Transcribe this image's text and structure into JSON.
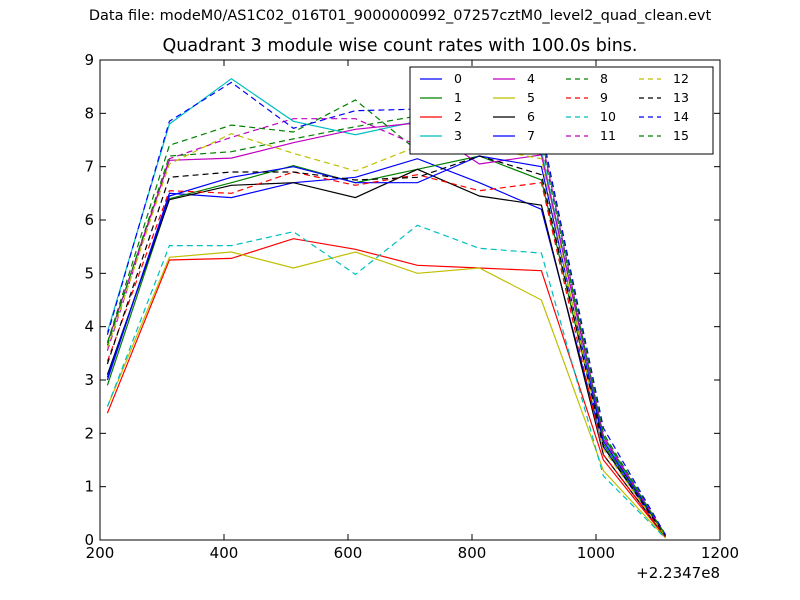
{
  "figure": {
    "suptitle": "Data file: modeM0/AS1C02_016T01_9000000992_07257cztM0_level2_quad_clean.evt",
    "title": "Quadrant 3 module wise count rates with 100.0s bins.",
    "x_offset_label": "+2.2347e8"
  },
  "chart_data": {
    "type": "line",
    "title": "Quadrant 3 module wise count rates with 100.0s bins.",
    "xlabel": "",
    "ylabel": "",
    "xlim": [
      200,
      1200
    ],
    "ylim": [
      0,
      9
    ],
    "x_offset": "+2.2347e8",
    "xticks": [
      200,
      400,
      600,
      800,
      1000,
      1200
    ],
    "yticks": [
      0,
      1,
      2,
      3,
      4,
      5,
      6,
      7,
      8,
      9
    ],
    "grid": false,
    "legend": {
      "placement": "top-right",
      "columns": 4
    },
    "x": [
      212,
      312,
      412,
      512,
      612,
      712,
      812,
      912,
      1012,
      1112
    ],
    "series": [
      {
        "name": "0",
        "color": "#0000ff",
        "dash": "solid",
        "values": [
          3.0,
          6.5,
          6.42,
          6.7,
          6.8,
          7.15,
          6.7,
          6.2,
          1.75,
          0.05
        ]
      },
      {
        "name": "1",
        "color": "#008000",
        "dash": "solid",
        "values": [
          2.9,
          6.4,
          6.7,
          7.02,
          6.7,
          6.95,
          7.2,
          6.75,
          1.8,
          0.08
        ]
      },
      {
        "name": "2",
        "color": "#ff0000",
        "dash": "solid",
        "values": [
          2.38,
          5.25,
          5.28,
          5.65,
          5.45,
          5.15,
          5.1,
          5.05,
          1.5,
          0.05
        ]
      },
      {
        "name": "3",
        "color": "#00bfbf",
        "dash": "solid",
        "values": [
          3.9,
          7.8,
          8.65,
          7.85,
          7.6,
          7.85,
          8.3,
          7.3,
          1.9,
          0.07
        ]
      },
      {
        "name": "4",
        "color": "#bf00bf",
        "dash": "solid",
        "values": [
          3.7,
          7.12,
          7.16,
          7.45,
          7.7,
          7.82,
          7.05,
          7.22,
          1.95,
          0.08
        ]
      },
      {
        "name": "5",
        "color": "#bfbf00",
        "dash": "solid",
        "values": [
          2.5,
          5.3,
          5.4,
          5.1,
          5.4,
          5.0,
          5.1,
          4.5,
          1.3,
          0.04
        ]
      },
      {
        "name": "6",
        "color": "#000000",
        "dash": "solid",
        "values": [
          3.1,
          6.38,
          6.65,
          6.7,
          6.42,
          6.95,
          6.45,
          6.28,
          1.6,
          0.06
        ]
      },
      {
        "name": "7",
        "color": "#0000ff",
        "dash": "solid",
        "values": [
          3.05,
          6.45,
          6.8,
          7.0,
          6.7,
          6.7,
          7.2,
          7.0,
          1.85,
          0.09
        ]
      },
      {
        "name": "8",
        "color": "#008000",
        "dash": "dashed",
        "values": [
          3.7,
          7.4,
          7.78,
          7.65,
          8.25,
          7.3,
          7.7,
          7.6,
          2.0,
          0.1
        ]
      },
      {
        "name": "9",
        "color": "#ff0000",
        "dash": "dashed",
        "values": [
          3.35,
          6.55,
          6.5,
          6.9,
          6.65,
          6.85,
          6.55,
          6.7,
          1.6,
          0.06
        ]
      },
      {
        "name": "10",
        "color": "#00bfbf",
        "dash": "dashed",
        "values": [
          2.5,
          5.52,
          5.52,
          5.78,
          4.98,
          5.9,
          5.47,
          5.38,
          1.2,
          0.03
        ]
      },
      {
        "name": "11",
        "color": "#bf00bf",
        "dash": "dashed",
        "values": [
          3.55,
          7.15,
          7.55,
          7.9,
          7.9,
          7.4,
          7.8,
          7.55,
          1.9,
          0.1
        ]
      },
      {
        "name": "12",
        "color": "#bfbf00",
        "dash": "dashed",
        "values": [
          3.6,
          7.05,
          7.62,
          7.25,
          6.92,
          7.38,
          7.37,
          7.15,
          1.7,
          0.07
        ]
      },
      {
        "name": "13",
        "color": "#000000",
        "dash": "dashed",
        "values": [
          3.3,
          6.8,
          6.9,
          6.9,
          6.75,
          6.8,
          7.2,
          6.85,
          1.75,
          0.08
        ]
      },
      {
        "name": "14",
        "color": "#0000ff",
        "dash": "dashed",
        "values": [
          3.85,
          7.85,
          8.58,
          7.72,
          8.05,
          8.08,
          7.35,
          7.7,
          2.1,
          0.1
        ]
      },
      {
        "name": "15",
        "color": "#008000",
        "dash": "dashed",
        "values": [
          3.65,
          7.2,
          7.28,
          7.52,
          7.75,
          7.95,
          7.35,
          7.45,
          1.95,
          0.09
        ]
      }
    ]
  }
}
